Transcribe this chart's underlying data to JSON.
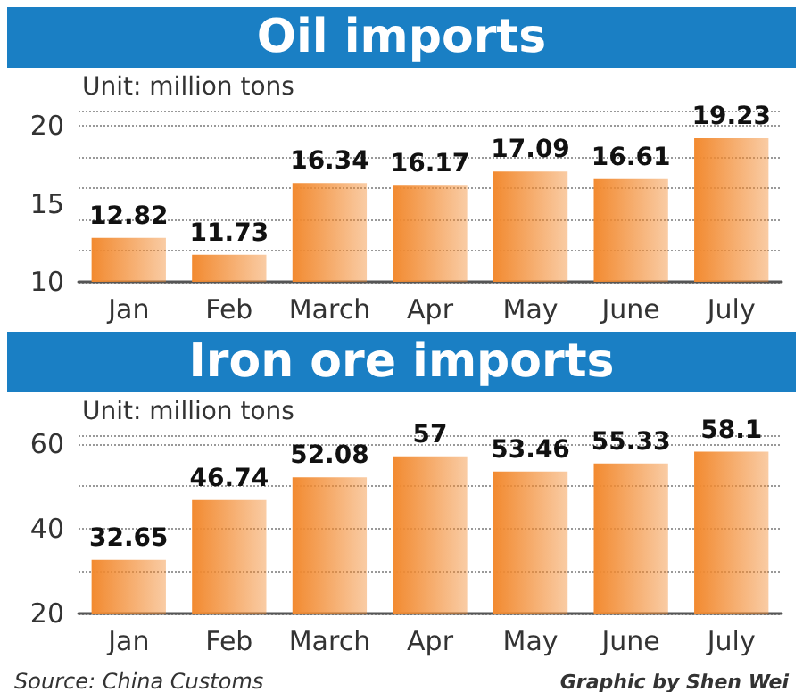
{
  "chart_data": [
    {
      "type": "bar",
      "title": "Oil imports",
      "categories": [
        "Jan",
        "Feb",
        "March",
        "Apr",
        "May",
        "June",
        "July"
      ],
      "values": [
        12.82,
        11.73,
        16.34,
        16.17,
        17.09,
        16.61,
        19.23
      ],
      "color": "#f28a30",
      "ylim": [
        10,
        21
      ],
      "yticks": [
        10,
        15,
        20
      ],
      "grid": "y",
      "data_labels": true,
      "annotations": [
        "Unit: million tons"
      ]
    },
    {
      "type": "bar",
      "title": "Iron ore imports",
      "categories": [
        "Jan",
        "Feb",
        "March",
        "Apr",
        "May",
        "June",
        "July"
      ],
      "values": [
        32.65,
        46.74,
        52.08,
        57,
        53.46,
        55.33,
        58.1
      ],
      "color": "#f28a30",
      "ylim": [
        20,
        62
      ],
      "yticks": [
        20,
        40,
        60
      ],
      "grid": "y",
      "data_labels": true,
      "annotations": [
        "Unit: million tons",
        "Source: China Customs",
        "Graphic by Shen Wei"
      ]
    }
  ]
}
